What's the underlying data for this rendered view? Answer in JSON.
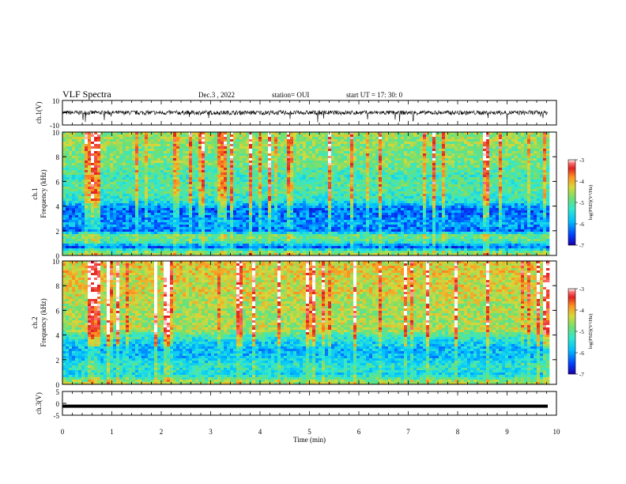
{
  "header": {
    "title": "VLF Spectra",
    "date": "Dec.3  , 2022",
    "station": "station= OUI",
    "start_ut": "start  UT =   17: 30: 0"
  },
  "colors": {
    "colormap": [
      "#1a00a8",
      "#0040ff",
      "#00c0ff",
      "#30e8d0",
      "#70e070",
      "#d8d838",
      "#ff9020",
      "#e02020",
      "#ff7070",
      "#ffffff"
    ],
    "waveform": "#000000",
    "axis": "#000000"
  },
  "chart_data": [
    {
      "type": "line",
      "name": "ch1-waveform",
      "ylabel": "ch.1(V)",
      "ylim": [
        -10,
        10
      ],
      "yticks": [
        "10",
        "-10"
      ],
      "xlim": [
        0,
        10
      ],
      "baseline": 0,
      "amplitude_typical": 1.8
    },
    {
      "type": "heatmap",
      "name": "ch1-spectrogram",
      "ylabel": "ch.1\nFrequency  (kHz)",
      "ylim": [
        0,
        10
      ],
      "yticks": [
        "0",
        "2",
        "4",
        "6",
        "8",
        "10"
      ],
      "xlim": [
        0,
        9.8
      ],
      "colorbar": {
        "label": "log(PSD)(V²/Hz)",
        "range": [
          -7,
          -3
        ],
        "ticks": [
          "-3",
          "-4",
          "-5",
          "-6",
          "-7"
        ]
      },
      "profile_note_levels": [
        {
          "f": 0.2,
          "level": -4.6
        },
        {
          "f": 0.7,
          "level": -6.4
        },
        {
          "f": 1.1,
          "level": -5.2
        },
        {
          "f": 1.6,
          "level": -4.8
        },
        {
          "f": 2.0,
          "level": -6.3
        },
        {
          "f": 2.6,
          "level": -6.0
        },
        {
          "f": 3.2,
          "level": -6.2
        },
        {
          "f": 3.8,
          "level": -6.3
        },
        {
          "f": 4.5,
          "level": -5.3
        },
        {
          "f": 5.5,
          "level": -5.0
        },
        {
          "f": 6.5,
          "level": -5.2
        },
        {
          "f": 7.5,
          "level": -4.8
        },
        {
          "f": 8.5,
          "level": -4.8
        },
        {
          "f": 9.5,
          "level": -4.6
        }
      ]
    },
    {
      "type": "heatmap",
      "name": "ch2-spectrogram",
      "ylabel": "ch.2\nFrequency  (kHz)",
      "ylim": [
        0,
        10
      ],
      "yticks": [
        "0",
        "2",
        "4",
        "6",
        "8",
        "10"
      ],
      "xlim": [
        0,
        9.8
      ],
      "colorbar": {
        "label": "log(PSD)(V²/Hz)",
        "range": [
          -7,
          -3
        ],
        "ticks": [
          "-3",
          "-4",
          "-5",
          "-6",
          "-7"
        ]
      },
      "profile_note_levels": [
        {
          "f": 0.2,
          "level": -4.6
        },
        {
          "f": 0.8,
          "level": -5.6
        },
        {
          "f": 1.5,
          "level": -5.3
        },
        {
          "f": 2.2,
          "level": -5.8
        },
        {
          "f": 3.0,
          "level": -5.8
        },
        {
          "f": 3.6,
          "level": -5.5
        },
        {
          "f": 4.5,
          "level": -4.5
        },
        {
          "f": 5.5,
          "level": -4.6
        },
        {
          "f": 6.5,
          "level": -4.5
        },
        {
          "f": 7.5,
          "level": -4.3
        },
        {
          "f": 8.5,
          "level": -4.3
        },
        {
          "f": 9.5,
          "level": -4.2
        }
      ]
    },
    {
      "type": "line",
      "name": "ch3-waveform",
      "ylabel": "ch.3(V)",
      "ylim": [
        -5,
        5
      ],
      "yticks": [
        "5",
        "0",
        "-5"
      ],
      "xlim": [
        0,
        10
      ],
      "baseline": -1.2,
      "amplitude_typical": 0.3
    }
  ],
  "time_axis": {
    "xlabel": "Time  (min)",
    "xlim": [
      0,
      10
    ],
    "ticks": [
      "0",
      "1",
      "2",
      "3",
      "4",
      "5",
      "6",
      "7",
      "8",
      "9",
      "10"
    ]
  }
}
